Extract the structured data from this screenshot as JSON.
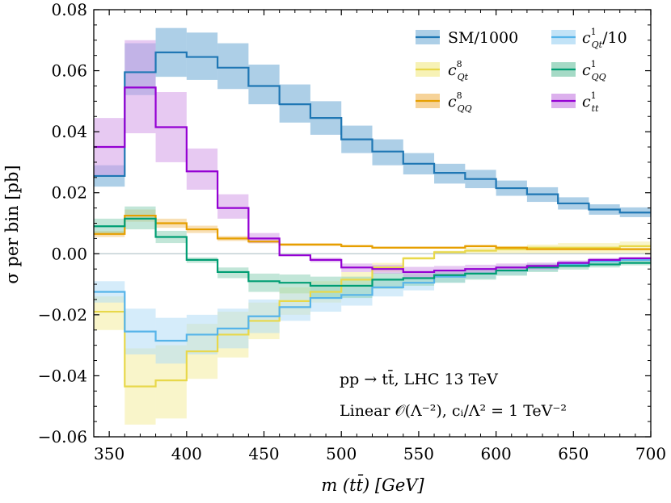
{
  "chart_data": {
    "type": "step-histogram",
    "xlabel": "m (tt̄) [GeV]",
    "ylabel": "σ per bin [pb]",
    "xlim": [
      340,
      700
    ],
    "ylim": [
      -0.06,
      0.08
    ],
    "x_ticks": [
      350,
      400,
      450,
      500,
      550,
      600,
      650,
      700
    ],
    "y_ticks": [
      -0.06,
      -0.04,
      -0.02,
      0.0,
      0.02,
      0.04,
      0.06,
      0.08
    ],
    "x_tick_labels": [
      "350",
      "400",
      "450",
      "500",
      "550",
      "600",
      "650",
      "700"
    ],
    "y_tick_labels": [
      "−0.06",
      "−0.04",
      "−0.02",
      "0.00",
      "0.02",
      "0.04",
      "0.06",
      "0.08"
    ],
    "zero_line": true,
    "bin_edges": [
      340,
      360,
      380,
      400,
      420,
      440,
      460,
      480,
      500,
      520,
      540,
      560,
      580,
      600,
      620,
      640,
      660,
      680,
      700
    ],
    "legend_position": "top-right",
    "series": [
      {
        "key": "sm",
        "name": "SM/1000",
        "color": "#1f77b4",
        "band_color": "#6aa8d4",
        "values": [
          0.0255,
          0.0595,
          0.066,
          0.0645,
          0.061,
          0.055,
          0.049,
          0.0445,
          0.0375,
          0.0335,
          0.0295,
          0.0265,
          0.0245,
          0.0215,
          0.0195,
          0.0165,
          0.0145,
          0.0135,
          0.0115
        ],
        "band_low": [
          0.022,
          0.052,
          0.058,
          0.057,
          0.054,
          0.049,
          0.043,
          0.039,
          0.033,
          0.029,
          0.026,
          0.023,
          0.0215,
          0.019,
          0.017,
          0.0145,
          0.0128,
          0.012,
          0.0103
        ],
        "band_high": [
          0.029,
          0.069,
          0.074,
          0.0725,
          0.069,
          0.062,
          0.0555,
          0.05,
          0.042,
          0.0375,
          0.033,
          0.0295,
          0.0275,
          0.024,
          0.0218,
          0.0185,
          0.0162,
          0.0152,
          0.0129
        ]
      },
      {
        "key": "cqt8",
        "name": "c8_Qt",
        "color": "#e8d84a",
        "band_color": "#f4ed9e",
        "values": [
          -0.019,
          -0.0435,
          -0.0415,
          -0.032,
          -0.0265,
          -0.022,
          -0.0155,
          -0.0125,
          -0.0085,
          -0.0045,
          -0.0015,
          0.0005,
          0.001,
          0.0015,
          0.002,
          0.002,
          0.002,
          0.0025,
          0.0025
        ],
        "band_low": [
          -0.025,
          -0.056,
          -0.054,
          -0.041,
          -0.034,
          -0.028,
          -0.02,
          -0.016,
          -0.011,
          -0.006,
          -0.002,
          0.0,
          0.0,
          0.0,
          0.0,
          0.0,
          0.0,
          0.0,
          0.0
        ],
        "band_high": [
          -0.014,
          -0.031,
          -0.03,
          -0.023,
          -0.019,
          -0.016,
          -0.011,
          -0.009,
          -0.006,
          -0.003,
          -0.001,
          0.001,
          0.002,
          0.0025,
          0.003,
          0.0035,
          0.0035,
          0.004,
          0.004
        ]
      },
      {
        "key": "cqq8",
        "name": "c8_QQ",
        "color": "#e69f00",
        "band_color": "#f3c477",
        "values": [
          0.0065,
          0.0125,
          0.01,
          0.008,
          0.005,
          0.004,
          0.003,
          0.003,
          0.0025,
          0.002,
          0.002,
          0.002,
          0.0025,
          0.002,
          0.0015,
          0.0015,
          0.0015,
          0.0015,
          0.0015
        ],
        "band_low": [
          0.0055,
          0.0105,
          0.0085,
          0.0068,
          0.0042,
          0.0034,
          0.0025,
          0.0025,
          0.0021,
          0.0017,
          0.0017,
          0.0017,
          0.0021,
          0.0017,
          0.0013,
          0.0013,
          0.0013,
          0.0013,
          0.0013
        ],
        "band_high": [
          0.0075,
          0.0145,
          0.0115,
          0.0092,
          0.0058,
          0.0046,
          0.0035,
          0.0035,
          0.0029,
          0.0023,
          0.0023,
          0.0023,
          0.0029,
          0.0023,
          0.0017,
          0.0017,
          0.0017,
          0.0017,
          0.0017
        ]
      },
      {
        "key": "cqt1",
        "name": "c1_Qt/10",
        "color": "#56b4e9",
        "band_color": "#b3dcf5",
        "values": [
          -0.0125,
          -0.0255,
          -0.0285,
          -0.0265,
          -0.0245,
          -0.0205,
          -0.0175,
          -0.0145,
          -0.0135,
          -0.011,
          -0.0095,
          -0.0075,
          -0.0065,
          -0.0055,
          -0.0045,
          -0.0035,
          -0.0025,
          -0.002,
          -0.0015
        ],
        "band_low": [
          -0.016,
          -0.033,
          -0.036,
          -0.033,
          -0.031,
          -0.026,
          -0.022,
          -0.019,
          -0.017,
          -0.014,
          -0.012,
          -0.0095,
          -0.0082,
          -0.007,
          -0.0057,
          -0.0045,
          -0.0032,
          -0.0026,
          -0.002
        ],
        "band_high": [
          -0.009,
          -0.018,
          -0.021,
          -0.02,
          -0.018,
          -0.015,
          -0.013,
          -0.01,
          -0.01,
          -0.008,
          -0.007,
          -0.0055,
          -0.0048,
          -0.004,
          -0.0033,
          -0.0025,
          -0.0018,
          -0.0014,
          -0.001
        ]
      },
      {
        "key": "cqq1",
        "name": "c1_QQ",
        "color": "#009e73",
        "band_color": "#8fd1b8",
        "values": [
          0.009,
          0.0115,
          0.0055,
          -0.002,
          -0.006,
          -0.009,
          -0.0095,
          -0.0105,
          -0.0105,
          -0.0085,
          -0.008,
          -0.007,
          -0.0065,
          -0.0055,
          -0.0045,
          -0.004,
          -0.0035,
          -0.003,
          -0.0025
        ],
        "band_low": [
          0.0065,
          0.008,
          0.0035,
          -0.003,
          -0.008,
          -0.0125,
          -0.013,
          -0.0145,
          -0.0145,
          -0.0115,
          -0.0105,
          -0.0095,
          -0.0085,
          -0.0072,
          -0.006,
          -0.0052,
          -0.0045,
          -0.0038,
          -0.0032
        ],
        "band_high": [
          0.0115,
          0.0155,
          0.0075,
          -0.0012,
          -0.0045,
          -0.0065,
          -0.0068,
          -0.0075,
          -0.0075,
          -0.0062,
          -0.0058,
          -0.0052,
          -0.0048,
          -0.004,
          -0.0033,
          -0.0029,
          -0.0025,
          -0.0022,
          -0.0018
        ]
      },
      {
        "key": "ctt1",
        "name": "c1_tt",
        "color": "#9400d3",
        "band_color": "#d39ce8",
        "values": [
          0.035,
          0.0545,
          0.0415,
          0.027,
          0.015,
          0.005,
          -0.0005,
          -0.002,
          -0.0045,
          -0.005,
          -0.006,
          -0.0055,
          -0.005,
          -0.0045,
          -0.004,
          -0.003,
          -0.002,
          -0.0015,
          -0.0005
        ],
        "band_low": [
          0.0255,
          0.0395,
          0.03,
          0.021,
          0.0115,
          0.0035,
          -0.0008,
          -0.0028,
          -0.006,
          -0.0065,
          -0.0078,
          -0.0072,
          -0.0065,
          -0.0058,
          -0.0052,
          -0.0039,
          -0.0026,
          -0.002,
          -0.0007
        ],
        "band_high": [
          0.0445,
          0.07,
          0.053,
          0.0345,
          0.0195,
          0.0068,
          -0.0002,
          -0.0013,
          -0.0032,
          -0.0036,
          -0.0043,
          -0.004,
          -0.0036,
          -0.0032,
          -0.0029,
          -0.0022,
          -0.0014,
          -0.001,
          -0.0003
        ]
      }
    ],
    "annotations": [
      "pp → tt̄, LHC 13 TeV",
      "Linear 𝒪(Λ⁻²), cᵢ/Λ² = 1 TeV⁻²"
    ]
  },
  "legend": {
    "sm": "SM/1000",
    "cqt8_main": "c",
    "cqt8_sup": "8",
    "cqt8_sub": "Qt",
    "cqq8_main": "c",
    "cqq8_sup": "8",
    "cqq8_sub": "QQ",
    "cqt1_main": "c",
    "cqt1_sup": "1",
    "cqt1_sub": "Qt",
    "cqt1_tail": "/10",
    "cqq1_main": "c",
    "cqq1_sup": "1",
    "cqq1_sub": "QQ",
    "ctt1_main": "c",
    "ctt1_sup": "1",
    "ctt1_sub": "tt"
  },
  "annotation": {
    "line1": "pp → tt̄, LHC 13 TeV",
    "line2": "Linear 𝒪(Λ⁻²), cᵢ/Λ² = 1 TeV⁻²"
  },
  "axes": {
    "xlabel": "m (tt̄) [GeV]",
    "ylabel": "σ per bin [pb]"
  }
}
